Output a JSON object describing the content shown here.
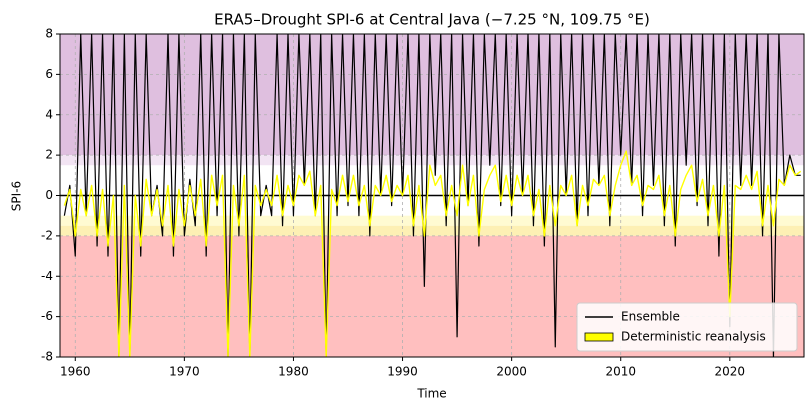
{
  "chart_data": {
    "type": "line",
    "title": "ERA5–Drought SPI-6 at Central Java (−7.25 °N, 109.75 °E)",
    "xlabel": "Time",
    "ylabel": "SPI-6",
    "xlim": [
      1958.6,
      2026.8
    ],
    "xticks": [
      1960,
      1970,
      1980,
      1990,
      2000,
      2010,
      2020
    ],
    "ylim": [
      -8,
      8
    ],
    "yticks": [
      -8,
      -6,
      -4,
      -2,
      0,
      2,
      4,
      6,
      8
    ],
    "grid": true,
    "hline": 0,
    "legend": "lower right",
    "bands": [
      {
        "from": 2,
        "to": 8,
        "color": "#dfbfdf"
      },
      {
        "from": 1.5,
        "to": 2,
        "color": "#f2e4f3"
      },
      {
        "from": -1.5,
        "to": -1,
        "color": "#fffbd2"
      },
      {
        "from": -2,
        "to": -1.5,
        "color": "#fdf0b4"
      },
      {
        "from": -8,
        "to": -2,
        "color": "#ffbfbf"
      }
    ],
    "x": [
      1959,
      1959.5,
      1960,
      1960.5,
      1961,
      1961.5,
      1962,
      1962.5,
      1963,
      1963.5,
      1964,
      1964.5,
      1965,
      1965.5,
      1966,
      1966.5,
      1967,
      1967.5,
      1968,
      1968.5,
      1969,
      1969.5,
      1970,
      1970.5,
      1971,
      1971.5,
      1972,
      1972.5,
      1973,
      1973.5,
      1974,
      1974.5,
      1975,
      1975.5,
      1976,
      1976.5,
      1977,
      1977.5,
      1978,
      1978.5,
      1979,
      1979.5,
      1980,
      1980.5,
      1981,
      1981.5,
      1982,
      1982.5,
      1983,
      1983.5,
      1984,
      1984.5,
      1985,
      1985.5,
      1986,
      1986.5,
      1987,
      1987.5,
      1988,
      1988.5,
      1989,
      1989.5,
      1990,
      1990.5,
      1991,
      1991.5,
      1992,
      1992.5,
      1993,
      1993.5,
      1994,
      1994.5,
      1995,
      1995.5,
      1996,
      1996.5,
      1997,
      1997.5,
      1998,
      1998.5,
      1999,
      1999.5,
      2000,
      2000.5,
      2001,
      2001.5,
      2002,
      2002.5,
      2003,
      2003.5,
      2004,
      2004.5,
      2005,
      2005.5,
      2006,
      2006.5,
      2007,
      2007.5,
      2008,
      2008.5,
      2009,
      2009.5,
      2010,
      2010.5,
      2011,
      2011.5,
      2012,
      2012.5,
      2013,
      2013.5,
      2014,
      2014.5,
      2015,
      2015.5,
      2016,
      2016.5,
      2017,
      2017.5,
      2018,
      2018.5,
      2019,
      2019.5,
      2020,
      2020.5,
      2021,
      2021.5,
      2022,
      2022.5,
      2023,
      2023.5,
      2024,
      2024.5,
      2025,
      2025.5,
      2026,
      2026.5
    ],
    "series": [
      {
        "name": "Ensemble",
        "color": "#000000",
        "values": [
          -1,
          0.5,
          -3,
          8,
          -1,
          8,
          -2.5,
          8,
          -3,
          8,
          -8,
          8,
          -8,
          8,
          -3,
          8,
          -1,
          0.5,
          -2,
          8,
          -3,
          8,
          -2,
          0.8,
          -1.5,
          8,
          -3,
          8,
          -1,
          8,
          -8,
          8,
          -2,
          8,
          -8,
          8,
          -1,
          0.5,
          -1,
          8,
          -1.5,
          8,
          -1,
          8,
          0.5,
          8,
          -1,
          8,
          -8,
          8,
          -1,
          8,
          -0.5,
          8,
          -1,
          8,
          -2,
          8,
          0,
          8,
          -0.5,
          8,
          0,
          8,
          -2,
          8,
          -4.5,
          8,
          1,
          8,
          -1.5,
          8,
          -7,
          8,
          -0.5,
          8,
          -2.5,
          8,
          1.5,
          8,
          -0.5,
          8,
          -1,
          8,
          0,
          8,
          -1.5,
          8,
          -2.5,
          8,
          -7.5,
          8,
          0,
          8,
          -1.5,
          8,
          -1,
          8,
          0.5,
          8,
          -1.5,
          8,
          2,
          8,
          0.5,
          8,
          -1,
          8,
          0.5,
          8,
          -1.5,
          8,
          -2.5,
          8,
          1.5,
          8,
          -0.5,
          8,
          -1.5,
          8,
          -3,
          8,
          -6.5,
          8,
          0.5,
          8,
          0.5,
          8,
          -2,
          8,
          -8,
          8,
          0.5,
          2,
          1,
          1
        ]
      },
      {
        "name": "Deterministic reanalysis",
        "color": "#ffff00",
        "values": [
          -0.5,
          0.3,
          -2,
          0.3,
          -1,
          0.5,
          -2,
          0.3,
          -2.5,
          0,
          -8,
          0.5,
          -8,
          0,
          -2.5,
          0.8,
          -1,
          0.3,
          -1.5,
          0.5,
          -2.5,
          0.3,
          -1.5,
          0.5,
          -1,
          0.8,
          -2.5,
          1,
          -0.5,
          1,
          -8,
          0.5,
          -1.5,
          1,
          -8,
          0.5,
          -0.5,
          0.3,
          -0.5,
          1,
          -1,
          0.5,
          -0.5,
          1,
          0.5,
          1.2,
          -1,
          0.5,
          -8,
          0.3,
          -0.5,
          1,
          -0.3,
          1,
          -0.5,
          0.5,
          -1.5,
          0.5,
          0,
          1,
          -0.3,
          0.5,
          0,
          1,
          -1.5,
          0.5,
          -2,
          1.5,
          0.5,
          1,
          -1,
          0.5,
          -1,
          1.5,
          -0.5,
          1,
          -2,
          0.3,
          1,
          1.5,
          -0.3,
          1,
          -0.5,
          1,
          0,
          1,
          -1,
          0.3,
          -2,
          0.5,
          -1.5,
          0.5,
          0,
          1,
          -1.5,
          0.5,
          -0.5,
          0.8,
          0.5,
          1,
          -1,
          0.5,
          1.5,
          2.2,
          0.5,
          1,
          -0.5,
          0.5,
          0.3,
          1,
          -1,
          0.5,
          -2,
          0.3,
          1,
          1.5,
          -0.3,
          0.8,
          -1,
          0.5,
          -2,
          0.5,
          -6,
          0.5,
          0.3,
          1,
          0.3,
          1.2,
          -1.5,
          0.5,
          -1.5,
          0.8,
          0.5,
          1.5,
          1,
          1.2
        ]
      }
    ]
  }
}
